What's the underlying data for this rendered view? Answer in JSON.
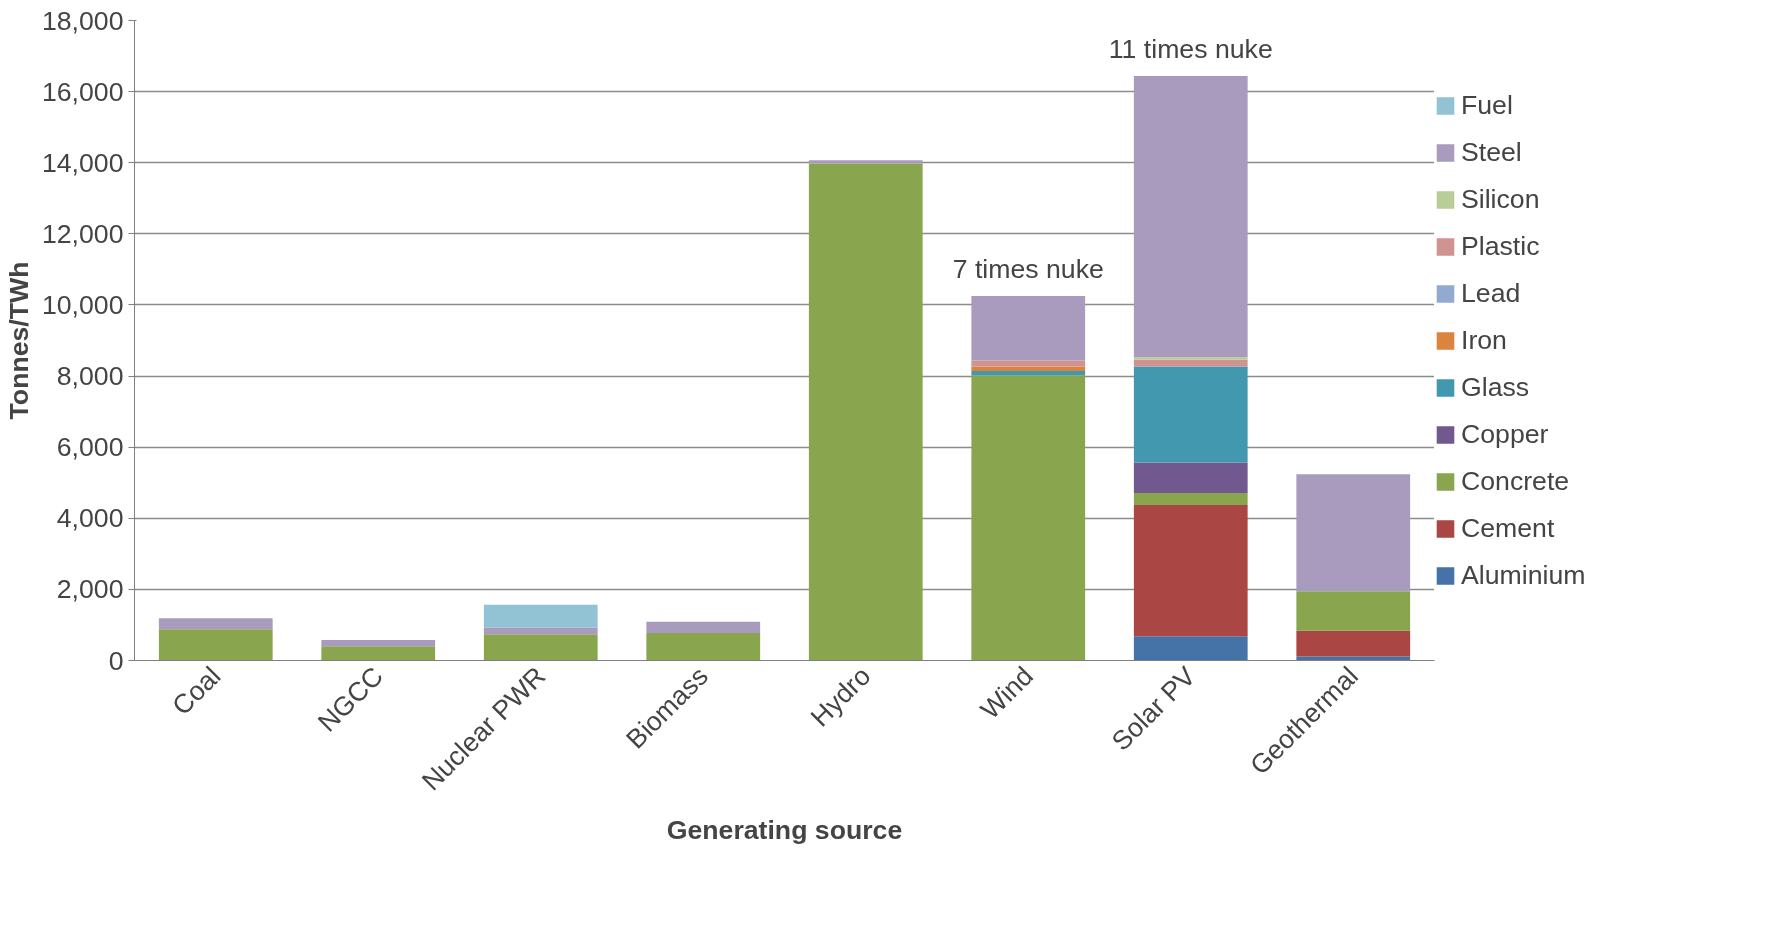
{
  "chart_data": {
    "type": "bar",
    "stacked": true,
    "xlabel": "Generating source",
    "ylabel": "Tonnes/TWh",
    "categories": [
      "Coal",
      "NGCC",
      "Nuclear PWR",
      "Biomass",
      "Hydro",
      "Wind",
      "Solar PV",
      "Geothermal"
    ],
    "series": [
      {
        "name": "Aluminium",
        "color": "#4572a7",
        "values": [
          0,
          0,
          0,
          0,
          0,
          0,
          680,
          110
        ]
      },
      {
        "name": "Cement",
        "color": "#aa4643",
        "values": [
          0,
          0,
          0,
          0,
          0,
          0,
          3690,
          730
        ]
      },
      {
        "name": "Concrete",
        "color": "#89a54e",
        "values": [
          880,
          400,
          740,
          770,
          13980,
          8020,
          340,
          1110
        ]
      },
      {
        "name": "Copper",
        "color": "#71588f",
        "values": [
          0,
          0,
          0,
          0,
          0,
          0,
          860,
          0
        ]
      },
      {
        "name": "Glass",
        "color": "#4198af",
        "values": [
          0,
          0,
          0,
          0,
          0,
          120,
          2700,
          0
        ]
      },
      {
        "name": "Iron",
        "color": "#db843d",
        "values": [
          0,
          0,
          0,
          0,
          0,
          130,
          0,
          0
        ]
      },
      {
        "name": "Lead",
        "color": "#93a9cf",
        "values": [
          0,
          0,
          0,
          0,
          0,
          0,
          0,
          0
        ]
      },
      {
        "name": "Plastic",
        "color": "#d19392",
        "values": [
          0,
          0,
          0,
          0,
          0,
          170,
          190,
          0
        ]
      },
      {
        "name": "Silicon",
        "color": "#b9cd96",
        "values": [
          0,
          0,
          0,
          0,
          0,
          0,
          70,
          0
        ]
      },
      {
        "name": "Steel",
        "color": "#a99bbd",
        "values": [
          310,
          180,
          180,
          320,
          90,
          1810,
          7910,
          3290
        ]
      },
      {
        "name": "Fuel",
        "color": "#92c3d5",
        "values": [
          0,
          0,
          650,
          0,
          0,
          0,
          0,
          0
        ]
      }
    ],
    "ylim": [
      0,
      18000
    ],
    "yticks": [
      {
        "value": 0,
        "label": "0"
      },
      {
        "value": 2000,
        "label": "2,000"
      },
      {
        "value": 4000,
        "label": "4,000"
      },
      {
        "value": 6000,
        "label": "6,000"
      },
      {
        "value": 8000,
        "label": "8,000"
      },
      {
        "value": 10000,
        "label": "10,000"
      },
      {
        "value": 12000,
        "label": "12,000"
      },
      {
        "value": 14000,
        "label": "14,000"
      },
      {
        "value": 16000,
        "label": "16,000"
      },
      {
        "value": 18000,
        "label": "18,000"
      }
    ],
    "grid": "y",
    "legend": "right",
    "annotations": [
      {
        "text": "7 times nuke",
        "x": "Wind",
        "y": 10250
      },
      {
        "text": "11 times nuke",
        "x": "Solar PV",
        "y": 16440
      }
    ]
  }
}
